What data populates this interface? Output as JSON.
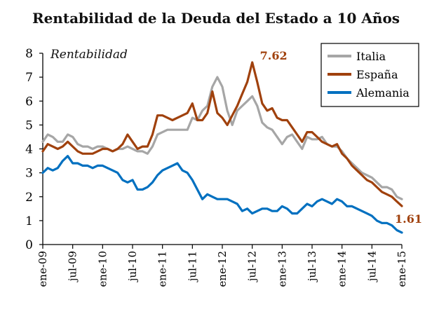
{
  "chart_data": {
    "type": "line",
    "title": "Rentabilidad de la Deuda del Estado a 10 Años",
    "ylabel": "Rentabilidad",
    "xlabel": "",
    "ylim": [
      0,
      8
    ],
    "yticks": [
      "0",
      "1",
      "2",
      "3",
      "4",
      "5",
      "6",
      "7",
      "8"
    ],
    "xticks": [
      "ene-09",
      "jul-09",
      "ene-10",
      "jul-10",
      "ene-11",
      "jul-11",
      "ene-12",
      "jul-12",
      "ene-13",
      "jul-13",
      "ene-14",
      "jul-14",
      "ene-15"
    ],
    "grid": false,
    "legend_position": "top-right",
    "series": [
      {
        "name": "Italia",
        "color": "#a6a6a6",
        "points": [
          [
            "2009-01",
            4.3
          ],
          [
            "2009-02",
            4.6
          ],
          [
            "2009-03",
            4.5
          ],
          [
            "2009-04",
            4.3
          ],
          [
            "2009-05",
            4.3
          ],
          [
            "2009-06",
            4.6
          ],
          [
            "2009-07",
            4.5
          ],
          [
            "2009-08",
            4.2
          ],
          [
            "2009-09",
            4.1
          ],
          [
            "2009-10",
            4.1
          ],
          [
            "2009-11",
            4.0
          ],
          [
            "2009-12",
            4.1
          ],
          [
            "2010-01",
            4.1
          ],
          [
            "2010-02",
            4.0
          ],
          [
            "2010-03",
            3.9
          ],
          [
            "2010-04",
            4.0
          ],
          [
            "2010-05",
            4.0
          ],
          [
            "2010-06",
            4.1
          ],
          [
            "2010-07",
            4.0
          ],
          [
            "2010-08",
            3.9
          ],
          [
            "2010-09",
            3.9
          ],
          [
            "2010-10",
            3.8
          ],
          [
            "2010-11",
            4.1
          ],
          [
            "2010-12",
            4.6
          ],
          [
            "2011-01",
            4.7
          ],
          [
            "2011-02",
            4.8
          ],
          [
            "2011-03",
            4.8
          ],
          [
            "2011-04",
            4.8
          ],
          [
            "2011-05",
            4.8
          ],
          [
            "2011-06",
            4.8
          ],
          [
            "2011-07",
            5.3
          ],
          [
            "2011-08",
            5.2
          ],
          [
            "2011-09",
            5.6
          ],
          [
            "2011-10",
            5.8
          ],
          [
            "2011-11",
            6.6
          ],
          [
            "2011-12",
            7.0
          ],
          [
            "2012-01",
            6.6
          ],
          [
            "2012-02",
            5.6
          ],
          [
            "2012-03",
            5.0
          ],
          [
            "2012-04",
            5.6
          ],
          [
            "2012-05",
            5.8
          ],
          [
            "2012-06",
            6.0
          ],
          [
            "2012-07",
            6.2
          ],
          [
            "2012-08",
            5.8
          ],
          [
            "2012-09",
            5.1
          ],
          [
            "2012-10",
            4.9
          ],
          [
            "2012-11",
            4.8
          ],
          [
            "2012-12",
            4.5
          ],
          [
            "2013-01",
            4.2
          ],
          [
            "2013-02",
            4.5
          ],
          [
            "2013-03",
            4.6
          ],
          [
            "2013-04",
            4.3
          ],
          [
            "2013-05",
            4.0
          ],
          [
            "2013-06",
            4.5
          ],
          [
            "2013-07",
            4.4
          ],
          [
            "2013-08",
            4.4
          ],
          [
            "2013-09",
            4.5
          ],
          [
            "2013-10",
            4.2
          ],
          [
            "2013-11",
            4.1
          ],
          [
            "2013-12",
            4.1
          ],
          [
            "2014-01",
            3.9
          ],
          [
            "2014-02",
            3.6
          ],
          [
            "2014-03",
            3.4
          ],
          [
            "2014-04",
            3.2
          ],
          [
            "2014-05",
            3.0
          ],
          [
            "2014-06",
            2.9
          ],
          [
            "2014-07",
            2.8
          ],
          [
            "2014-08",
            2.6
          ],
          [
            "2014-09",
            2.4
          ],
          [
            "2014-10",
            2.4
          ],
          [
            "2014-11",
            2.3
          ],
          [
            "2014-12",
            2.0
          ],
          [
            "2015-01",
            1.9
          ]
        ]
      },
      {
        "name": "España",
        "color": "#a0410d",
        "points": [
          [
            "2009-01",
            3.9
          ],
          [
            "2009-02",
            4.2
          ],
          [
            "2009-03",
            4.1
          ],
          [
            "2009-04",
            4.0
          ],
          [
            "2009-05",
            4.1
          ],
          [
            "2009-06",
            4.3
          ],
          [
            "2009-07",
            4.1
          ],
          [
            "2009-08",
            3.9
          ],
          [
            "2009-09",
            3.8
          ],
          [
            "2009-10",
            3.8
          ],
          [
            "2009-11",
            3.8
          ],
          [
            "2009-12",
            3.9
          ],
          [
            "2010-01",
            4.0
          ],
          [
            "2010-02",
            4.0
          ],
          [
            "2010-03",
            3.9
          ],
          [
            "2010-04",
            4.0
          ],
          [
            "2010-05",
            4.2
          ],
          [
            "2010-06",
            4.6
          ],
          [
            "2010-07",
            4.3
          ],
          [
            "2010-08",
            4.0
          ],
          [
            "2010-09",
            4.1
          ],
          [
            "2010-10",
            4.1
          ],
          [
            "2010-11",
            4.6
          ],
          [
            "2010-12",
            5.4
          ],
          [
            "2011-01",
            5.4
          ],
          [
            "2011-02",
            5.3
          ],
          [
            "2011-03",
            5.2
          ],
          [
            "2011-04",
            5.3
          ],
          [
            "2011-05",
            5.4
          ],
          [
            "2011-06",
            5.5
          ],
          [
            "2011-07",
            5.9
          ],
          [
            "2011-08",
            5.2
          ],
          [
            "2011-09",
            5.2
          ],
          [
            "2011-10",
            5.5
          ],
          [
            "2011-11",
            6.4
          ],
          [
            "2011-12",
            5.5
          ],
          [
            "2012-01",
            5.3
          ],
          [
            "2012-02",
            5.0
          ],
          [
            "2012-03",
            5.4
          ],
          [
            "2012-04",
            5.8
          ],
          [
            "2012-05",
            6.3
          ],
          [
            "2012-06",
            6.8
          ],
          [
            "2012-07",
            7.62
          ],
          [
            "2012-08",
            6.8
          ],
          [
            "2012-09",
            5.9
          ],
          [
            "2012-10",
            5.6
          ],
          [
            "2012-11",
            5.7
          ],
          [
            "2012-12",
            5.3
          ],
          [
            "2013-01",
            5.2
          ],
          [
            "2013-02",
            5.2
          ],
          [
            "2013-03",
            4.9
          ],
          [
            "2013-04",
            4.6
          ],
          [
            "2013-05",
            4.3
          ],
          [
            "2013-06",
            4.7
          ],
          [
            "2013-07",
            4.7
          ],
          [
            "2013-08",
            4.5
          ],
          [
            "2013-09",
            4.3
          ],
          [
            "2013-10",
            4.2
          ],
          [
            "2013-11",
            4.1
          ],
          [
            "2013-12",
            4.2
          ],
          [
            "2014-01",
            3.8
          ],
          [
            "2014-02",
            3.6
          ],
          [
            "2014-03",
            3.3
          ],
          [
            "2014-04",
            3.1
          ],
          [
            "2014-05",
            2.9
          ],
          [
            "2014-06",
            2.7
          ],
          [
            "2014-07",
            2.6
          ],
          [
            "2014-08",
            2.4
          ],
          [
            "2014-09",
            2.2
          ],
          [
            "2014-10",
            2.1
          ],
          [
            "2014-11",
            2.0
          ],
          [
            "2014-12",
            1.8
          ],
          [
            "2015-01",
            1.61
          ]
        ]
      },
      {
        "name": "Alemania",
        "color": "#0070c0",
        "points": [
          [
            "2009-01",
            3.0
          ],
          [
            "2009-02",
            3.2
          ],
          [
            "2009-03",
            3.1
          ],
          [
            "2009-04",
            3.2
          ],
          [
            "2009-05",
            3.5
          ],
          [
            "2009-06",
            3.7
          ],
          [
            "2009-07",
            3.4
          ],
          [
            "2009-08",
            3.4
          ],
          [
            "2009-09",
            3.3
          ],
          [
            "2009-10",
            3.3
          ],
          [
            "2009-11",
            3.2
          ],
          [
            "2009-12",
            3.3
          ],
          [
            "2010-01",
            3.3
          ],
          [
            "2010-02",
            3.2
          ],
          [
            "2010-03",
            3.1
          ],
          [
            "2010-04",
            3.0
          ],
          [
            "2010-05",
            2.7
          ],
          [
            "2010-06",
            2.6
          ],
          [
            "2010-07",
            2.7
          ],
          [
            "2010-08",
            2.3
          ],
          [
            "2010-09",
            2.3
          ],
          [
            "2010-10",
            2.4
          ],
          [
            "2010-11",
            2.6
          ],
          [
            "2010-12",
            2.9
          ],
          [
            "2011-01",
            3.1
          ],
          [
            "2011-02",
            3.2
          ],
          [
            "2011-03",
            3.3
          ],
          [
            "2011-04",
            3.4
          ],
          [
            "2011-05",
            3.1
          ],
          [
            "2011-06",
            3.0
          ],
          [
            "2011-07",
            2.7
          ],
          [
            "2011-08",
            2.3
          ],
          [
            "2011-09",
            1.9
          ],
          [
            "2011-10",
            2.1
          ],
          [
            "2011-11",
            2.0
          ],
          [
            "2011-12",
            1.9
          ],
          [
            "2012-01",
            1.9
          ],
          [
            "2012-02",
            1.9
          ],
          [
            "2012-03",
            1.8
          ],
          [
            "2012-04",
            1.7
          ],
          [
            "2012-05",
            1.4
          ],
          [
            "2012-06",
            1.5
          ],
          [
            "2012-07",
            1.3
          ],
          [
            "2012-08",
            1.4
          ],
          [
            "2012-09",
            1.5
          ],
          [
            "2012-10",
            1.5
          ],
          [
            "2012-11",
            1.4
          ],
          [
            "2012-12",
            1.4
          ],
          [
            "2013-01",
            1.6
          ],
          [
            "2013-02",
            1.5
          ],
          [
            "2013-03",
            1.3
          ],
          [
            "2013-04",
            1.3
          ],
          [
            "2013-05",
            1.5
          ],
          [
            "2013-06",
            1.7
          ],
          [
            "2013-07",
            1.6
          ],
          [
            "2013-08",
            1.8
          ],
          [
            "2013-09",
            1.9
          ],
          [
            "2013-10",
            1.8
          ],
          [
            "2013-11",
            1.7
          ],
          [
            "2013-12",
            1.9
          ],
          [
            "2014-01",
            1.8
          ],
          [
            "2014-02",
            1.6
          ],
          [
            "2014-03",
            1.6
          ],
          [
            "2014-04",
            1.5
          ],
          [
            "2014-05",
            1.4
          ],
          [
            "2014-06",
            1.3
          ],
          [
            "2014-07",
            1.2
          ],
          [
            "2014-08",
            1.0
          ],
          [
            "2014-09",
            0.9
          ],
          [
            "2014-10",
            0.9
          ],
          [
            "2014-11",
            0.8
          ],
          [
            "2014-12",
            0.6
          ],
          [
            "2015-01",
            0.5
          ]
        ]
      }
    ],
    "annotations": [
      {
        "text": "7.62",
        "series": "España",
        "x": "2012-07",
        "y": 7.62
      },
      {
        "text": "1.61",
        "series": "España",
        "x": "2015-01",
        "y": 1.61
      }
    ]
  }
}
